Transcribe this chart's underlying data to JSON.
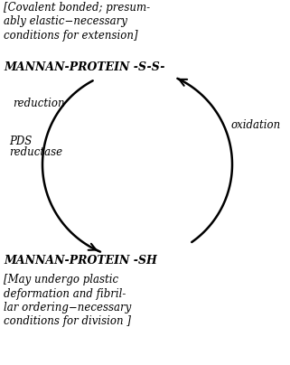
{
  "bg_color": "#ffffff",
  "text_color": "#000000",
  "figsize": [
    3.21,
    4.04
  ],
  "dpi": 100,
  "top_bracket_line1": "[Covalent bonded; presum-",
  "top_bracket_line2": "ably elastic−necessary",
  "top_bracket_line3": "conditions for extension]",
  "mannan_ss": "MANNAN-PROTEIN -S-S-",
  "reduction_label": "reduction",
  "pds_line1": "PDS",
  "pds_line2": "reductase",
  "oxidation_label": "oxidation",
  "mannan_sh": "MANNAN-PROTEIN -SH",
  "bot_bracket_line1": "[May undergo plastic",
  "bot_bracket_line2": "deformation and fibril-",
  "bot_bracket_line3": "lar ordering−necessary",
  "bot_bracket_line4": "conditions for division ]"
}
